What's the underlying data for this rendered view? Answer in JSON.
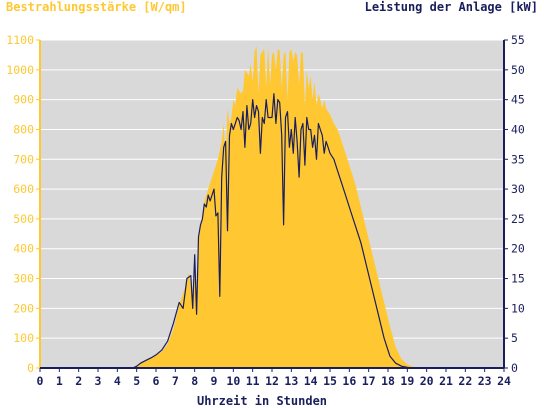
{
  "chart_data": {
    "type": "area",
    "left_axis_title": "Bestrahlungsstärke [W/qm]",
    "right_axis_title": "Leistung der Anlage [kW]",
    "xlabel": "Uhrzeit in Stunden",
    "xlim": [
      0,
      24
    ],
    "x_ticks": [
      "0",
      "1",
      "2",
      "3",
      "4",
      "5",
      "6",
      "7",
      "8",
      "9",
      "10",
      "11",
      "12",
      "13",
      "14",
      "15",
      "16",
      "17",
      "18",
      "19",
      "20",
      "21",
      "22",
      "23",
      "24"
    ],
    "y_left_lim": [
      0,
      1100
    ],
    "y_left_ticks": [
      "0",
      "100",
      "200",
      "300",
      "400",
      "500",
      "600",
      "700",
      "800",
      "900",
      "1000",
      "1100"
    ],
    "y_right_lim": [
      0,
      55
    ],
    "y_right_ticks": [
      "0",
      "5",
      "10",
      "15",
      "20",
      "25",
      "30",
      "35",
      "40",
      "45",
      "50",
      "55"
    ],
    "grid": true,
    "colors": {
      "plot_background": "#d9d9d9",
      "irradiance_fill": "#ffc832",
      "power_line": "#1a1f5c",
      "left_axis_color": "#ffc832",
      "right_axis_color": "#1a1f5c",
      "grid_color": "#ffffff"
    },
    "series": [
      {
        "name": "Bestrahlungsstärke [W/qm]",
        "axis": "left",
        "style": "area",
        "x": [
          0,
          4.8,
          5.0,
          5.2,
          5.5,
          5.8,
          6.0,
          6.3,
          6.6,
          6.9,
          7.2,
          7.5,
          7.7,
          7.9,
          8.0,
          8.1,
          8.2,
          8.3,
          8.4,
          8.5,
          8.6,
          8.7,
          8.8,
          9.0,
          9.2,
          9.4,
          9.5,
          9.6,
          9.7,
          9.8,
          9.9,
          10.0,
          10.1,
          10.2,
          10.4,
          10.5,
          10.6,
          10.8,
          10.9,
          11.0,
          11.1,
          11.2,
          11.3,
          11.4,
          11.5,
          11.6,
          11.7,
          11.8,
          11.9,
          12.0,
          12.1,
          12.2,
          12.3,
          12.4,
          12.5,
          12.6,
          12.7,
          12.8,
          12.9,
          13.0,
          13.1,
          13.2,
          13.3,
          13.4,
          13.5,
          13.6,
          13.7,
          13.8,
          13.9,
          14.0,
          14.1,
          14.2,
          14.3,
          14.4,
          14.5,
          14.6,
          14.7,
          14.8,
          14.9,
          15.0,
          15.2,
          15.4,
          15.6,
          15.8,
          16.0,
          16.3,
          16.6,
          16.9,
          17.2,
          17.5,
          17.8,
          18.1,
          18.4,
          18.7,
          19.0,
          19.3,
          19.6,
          19.9,
          20.2,
          20.4,
          20.6,
          24
        ],
        "y": [
          0,
          0,
          8,
          15,
          25,
          33,
          42,
          55,
          80,
          130,
          210,
          270,
          320,
          240,
          390,
          200,
          420,
          470,
          520,
          560,
          580,
          600,
          620,
          660,
          700,
          760,
          820,
          700,
          870,
          820,
          840,
          900,
          880,
          940,
          920,
          930,
          1000,
          980,
          1020,
          960,
          1060,
          1080,
          920,
          1050,
          1060,
          1070,
          940,
          1080,
          950,
          1050,
          1060,
          1000,
          1070,
          1065,
          940,
          1050,
          1060,
          900,
          1060,
          1070,
          1030,
          1060,
          1050,
          950,
          1060,
          1055,
          880,
          1000,
          940,
          980,
          900,
          960,
          880,
          920,
          900,
          870,
          900,
          870,
          860,
          850,
          820,
          800,
          760,
          720,
          680,
          620,
          540,
          460,
          380,
          300,
          220,
          140,
          70,
          30,
          12,
          4,
          0,
          0,
          0,
          0,
          0,
          0
        ]
      },
      {
        "name": "Leistung der Anlage [kW]",
        "axis": "right",
        "style": "line",
        "x": [
          0,
          4.8,
          5.0,
          5.2,
          5.5,
          5.8,
          6.0,
          6.3,
          6.6,
          6.9,
          7.2,
          7.4,
          7.6,
          7.8,
          7.9,
          8.0,
          8.1,
          8.2,
          8.3,
          8.4,
          8.5,
          8.6,
          8.7,
          8.8,
          9.0,
          9.1,
          9.2,
          9.3,
          9.4,
          9.5,
          9.6,
          9.7,
          9.8,
          9.9,
          10.0,
          10.1,
          10.2,
          10.3,
          10.4,
          10.5,
          10.6,
          10.7,
          10.8,
          10.9,
          11.0,
          11.1,
          11.2,
          11.3,
          11.4,
          11.5,
          11.6,
          11.7,
          11.8,
          11.9,
          12.0,
          12.1,
          12.2,
          12.3,
          12.4,
          12.5,
          12.6,
          12.7,
          12.8,
          12.9,
          13.0,
          13.1,
          13.2,
          13.3,
          13.4,
          13.5,
          13.6,
          13.7,
          13.8,
          13.9,
          14.0,
          14.1,
          14.2,
          14.3,
          14.4,
          14.5,
          14.6,
          14.7,
          14.8,
          14.9,
          15.0,
          15.2,
          15.4,
          15.6,
          15.8,
          16.0,
          16.3,
          16.6,
          16.9,
          17.2,
          17.5,
          17.8,
          18.1,
          18.4,
          18.7,
          19.0,
          19.3,
          19.6,
          19.9,
          20.2,
          20.4,
          20.6,
          24
        ],
        "y": [
          0,
          0,
          0.3,
          0.8,
          1.3,
          1.8,
          2.2,
          3,
          4.5,
          7.5,
          11,
          10,
          15,
          15.5,
          10,
          19,
          9,
          22,
          24,
          25,
          27.5,
          27,
          29,
          28,
          30,
          25.5,
          26,
          12,
          32,
          37,
          38,
          23,
          39,
          41,
          40,
          41,
          42,
          41.5,
          40,
          43,
          37,
          44,
          40,
          41,
          45,
          42,
          44,
          43,
          36,
          42,
          41,
          45,
          42,
          42,
          42,
          46,
          41,
          45,
          44.5,
          39,
          24,
          42,
          43,
          37,
          40,
          36,
          42,
          38,
          32,
          40,
          41,
          34,
          42,
          40,
          40,
          37,
          39,
          35,
          41,
          40,
          39,
          36,
          38,
          37,
          36,
          35,
          33,
          31,
          29,
          27,
          24,
          21,
          17,
          13,
          9,
          5,
          2,
          0.8,
          0.3,
          0.1,
          0,
          0,
          0,
          0,
          0,
          0,
          0
        ]
      }
    ]
  }
}
